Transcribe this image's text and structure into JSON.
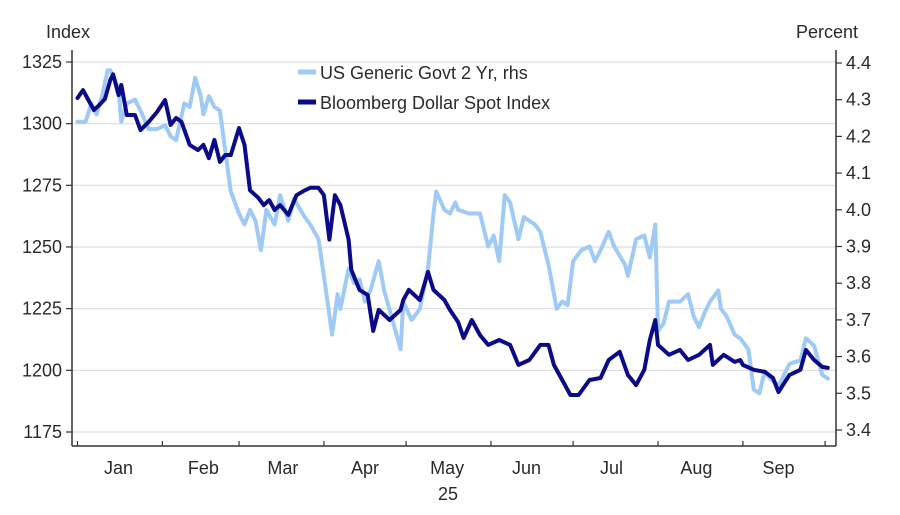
{
  "chart_data": {
    "type": "line",
    "left_axis_label": "Index",
    "right_axis_label": "Percent",
    "x_year_label": "25",
    "xlim_days": [
      -2,
      277
    ],
    "ylim_left": [
      1175,
      1325
    ],
    "ylim_right": [
      3.4,
      4.4
    ],
    "left_ticks": [
      1175,
      1200,
      1225,
      1250,
      1275,
      1300,
      1325
    ],
    "right_ticks": [
      "3.4",
      "3.5",
      "3.6",
      "3.7",
      "3.8",
      "3.9",
      "4.0",
      "4.1",
      "4.2",
      "4.3",
      "4.4"
    ],
    "month_ticks_days": [
      0,
      31,
      59,
      90,
      120,
      151,
      181,
      212,
      243,
      273
    ],
    "month_labels": [
      {
        "label": "Jan",
        "day": 15
      },
      {
        "label": "Feb",
        "day": 46
      },
      {
        "label": "Mar",
        "day": 75
      },
      {
        "label": "Apr",
        "day": 105
      },
      {
        "label": "May",
        "day": 135
      },
      {
        "label": "Jun",
        "day": 164
      },
      {
        "label": "Jul",
        "day": 195
      },
      {
        "label": "Aug",
        "day": 226
      },
      {
        "label": "Sep",
        "day": 256
      }
    ],
    "grid": "horizontal, at left-axis ticks",
    "legend_placement": "top-center",
    "series": [
      {
        "name": "US Generic Govt 2 Yr, rhs",
        "axis": "right",
        "color": "#9fcaf5",
        "days": [
          0,
          3,
          5,
          7,
          9,
          11,
          12,
          15,
          16,
          18,
          21,
          23,
          26,
          29,
          32,
          34,
          36,
          39,
          41,
          43,
          45,
          46,
          48,
          50,
          52,
          54,
          56,
          59,
          61,
          63,
          65,
          67,
          69,
          72,
          74,
          77,
          79,
          83,
          85,
          88,
          90,
          93,
          95,
          96,
          99,
          101,
          103,
          105,
          107,
          110,
          112,
          115,
          118,
          119,
          122,
          125,
          128,
          130,
          131,
          134,
          136,
          138,
          139,
          143,
          147,
          150,
          152,
          154,
          156,
          158,
          161,
          163,
          167,
          169,
          172,
          175,
          177,
          179,
          181,
          184,
          187,
          189,
          191,
          194,
          196,
          200,
          201,
          204,
          207,
          209,
          211,
          212,
          214,
          216,
          220,
          223,
          225,
          227,
          229,
          231,
          234,
          235,
          237,
          240,
          242,
          245,
          247,
          249,
          251,
          253,
          256,
          260,
          264,
          266,
          269,
          272,
          274
        ],
        "values": [
          4.24,
          4.24,
          4.29,
          4.26,
          4.31,
          4.38,
          4.38,
          4.33,
          4.24,
          4.29,
          4.3,
          4.27,
          4.22,
          4.22,
          4.23,
          4.2,
          4.19,
          4.29,
          4.28,
          4.36,
          4.31,
          4.26,
          4.31,
          4.28,
          4.27,
          4.16,
          4.05,
          3.99,
          3.96,
          4.0,
          3.97,
          3.89,
          4.0,
          3.96,
          4.04,
          3.97,
          4.03,
          3.98,
          3.96,
          3.92,
          3.82,
          3.66,
          3.77,
          3.73,
          3.84,
          3.8,
          3.81,
          3.75,
          3.78,
          3.86,
          3.78,
          3.7,
          3.62,
          3.75,
          3.7,
          3.73,
          3.84,
          3.99,
          4.05,
          4.0,
          3.99,
          4.02,
          4.0,
          3.99,
          3.99,
          3.9,
          3.93,
          3.86,
          4.04,
          4.02,
          3.92,
          3.98,
          3.96,
          3.94,
          3.85,
          3.73,
          3.75,
          3.74,
          3.86,
          3.89,
          3.9,
          3.86,
          3.89,
          3.94,
          3.9,
          3.85,
          3.82,
          3.92,
          3.93,
          3.87,
          3.96,
          3.67,
          3.69,
          3.75,
          3.75,
          3.77,
          3.71,
          3.68,
          3.72,
          3.75,
          3.78,
          3.73,
          3.71,
          3.66,
          3.65,
          3.62,
          3.51,
          3.5,
          3.56,
          3.54,
          3.52,
          3.58,
          3.59,
          3.65,
          3.63,
          3.55,
          3.54
        ]
      },
      {
        "name": "Bloomberg Dollar Spot Index",
        "axis": "left",
        "color": "#0b0b8a",
        "days": [
          0,
          2,
          4,
          6,
          8,
          10,
          12,
          13,
          15,
          16,
          18,
          21,
          23,
          26,
          29,
          32,
          34,
          36,
          38,
          41,
          44,
          46,
          48,
          50,
          52,
          54,
          56,
          59,
          61,
          63,
          66,
          68,
          70,
          72,
          74,
          77,
          80,
          83,
          85,
          88,
          90,
          92,
          94,
          96,
          99,
          100,
          103,
          106,
          108,
          110,
          114,
          118,
          119,
          121,
          125,
          128,
          130,
          134,
          136,
          139,
          141,
          144,
          147,
          150,
          154,
          158,
          161,
          165,
          169,
          172,
          174,
          177,
          180,
          183,
          187,
          191,
          194,
          198,
          201,
          204,
          207,
          209,
          211,
          212,
          216,
          220,
          223,
          227,
          231,
          232,
          236,
          240,
          242,
          243,
          247,
          251,
          254,
          256,
          260,
          264,
          266,
          269,
          272,
          274
        ],
        "values": [
          1310.4,
          1313.6,
          1309.6,
          1305.5,
          1307.6,
          1310,
          1317.7,
          1320,
          1311.6,
          1315.7,
          1303.5,
          1303.5,
          1297.4,
          1300.7,
          1304.7,
          1309.6,
          1299.5,
          1302.3,
          1300.7,
          1291.4,
          1289.3,
          1291.4,
          1286,
          1293.4,
          1284.5,
          1287.3,
          1287.3,
          1298.2,
          1291.4,
          1273,
          1270,
          1267,
          1269,
          1265,
          1267,
          1263,
          1271,
          1273,
          1274,
          1274,
          1271,
          1253,
          1271,
          1267,
          1253,
          1240.7,
          1232.6,
          1230.6,
          1216,
          1224.5,
          1220.4,
          1224.5,
          1228.5,
          1232.6,
          1228.5,
          1239.9,
          1232.6,
          1228.5,
          1224.5,
          1219.6,
          1213.1,
          1220.4,
          1214.3,
          1210.3,
          1212.3,
          1210.3,
          1202.2,
          1204.2,
          1210.3,
          1210.3,
          1202.2,
          1196.1,
          1190,
          1190,
          1196.1,
          1196.9,
          1204.2,
          1207.5,
          1198.1,
          1194,
          1200.2,
          1212.3,
          1220.4,
          1210.3,
          1206.3,
          1208.3,
          1204.2,
          1206.3,
          1210.3,
          1202.2,
          1206.3,
          1203.4,
          1204.2,
          1202.2,
          1200.2,
          1199.4,
          1196.9,
          1191.2,
          1198.1,
          1200.2,
          1208.3,
          1204.2,
          1201.4,
          1201
        ]
      }
    ]
  }
}
